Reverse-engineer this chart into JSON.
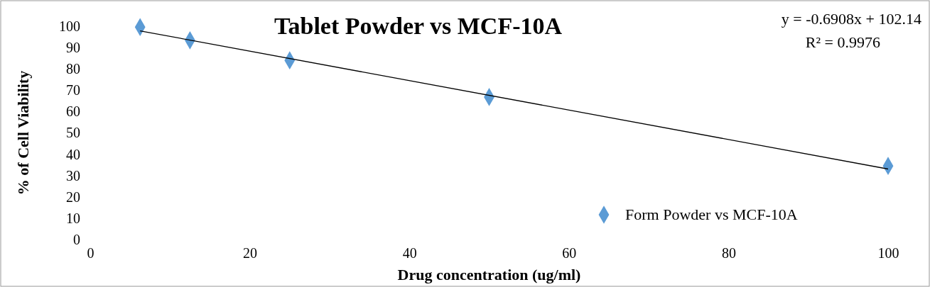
{
  "chart_data": {
    "type": "scatter",
    "title": "Tablet Powder vs MCF-10A",
    "xlabel": "Drug concentration (ug/ml)",
    "ylabel": "% of  Cell Viability",
    "annotations": [
      "y = -0.6908x + 102.14",
      "R² = 0.9976"
    ],
    "x": [
      6.25,
      12.5,
      25,
      50,
      100
    ],
    "series": [
      {
        "name": "Form Powder vs MCF-10A",
        "color": "#5b9bd5",
        "values": [
          99.6,
          93.4,
          84,
          66.8,
          34.5
        ],
        "marker": "diamond"
      },
      {
        "type": "line",
        "x": [
          6.25,
          100
        ],
        "color": "#000000",
        "values": [
          97.82,
          33.06
        ],
        "marker": "none"
      }
    ],
    "xlim": [
      0,
      100
    ],
    "xticks": [
      0,
      20,
      40,
      60,
      80,
      100
    ],
    "ylim": [
      0,
      100
    ],
    "yticks": [
      0,
      10,
      20,
      30,
      40,
      50,
      60,
      70,
      80,
      90,
      100
    ],
    "grid": false,
    "legend": "bottom right"
  }
}
